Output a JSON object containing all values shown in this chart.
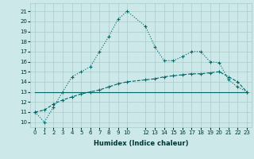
{
  "xlabel": "Humidex (Indice chaleur)",
  "bg_color": "#cce8e8",
  "line_color": "#006666",
  "grid_color": "#aacccc",
  "ylim": [
    9.5,
    21.8
  ],
  "xlim": [
    -0.5,
    23.5
  ],
  "yticks": [
    10,
    11,
    12,
    13,
    14,
    15,
    16,
    17,
    18,
    19,
    20,
    21
  ],
  "xticks": [
    0,
    1,
    2,
    3,
    4,
    5,
    6,
    7,
    8,
    9,
    10,
    12,
    13,
    14,
    15,
    16,
    17,
    18,
    19,
    20,
    21,
    22,
    23
  ],
  "line1_x": [
    0,
    1,
    2,
    3,
    4,
    5,
    6,
    7,
    8,
    9,
    10,
    12,
    13,
    14,
    15,
    16,
    17,
    18,
    19,
    20,
    21,
    22,
    23
  ],
  "line1_y": [
    11,
    10,
    11.5,
    13,
    14.5,
    15,
    15.5,
    17,
    18.5,
    20.2,
    21,
    19.5,
    17.5,
    16.1,
    16.1,
    16.5,
    17,
    17,
    16,
    15.9,
    14.2,
    13.5,
    13
  ],
  "line2_x": [
    0,
    23
  ],
  "line2_y": [
    13,
    13
  ],
  "line3_x": [
    0,
    1,
    2,
    3,
    4,
    5,
    6,
    7,
    8,
    9,
    10,
    12,
    13,
    14,
    15,
    16,
    17,
    18,
    19,
    20,
    21,
    22,
    23
  ],
  "line3_y": [
    11,
    11.2,
    11.8,
    12.2,
    12.5,
    12.8,
    13.0,
    13.2,
    13.5,
    13.8,
    14.0,
    14.2,
    14.3,
    14.5,
    14.6,
    14.7,
    14.8,
    14.8,
    14.9,
    15.0,
    14.5,
    14.0,
    13.0
  ]
}
